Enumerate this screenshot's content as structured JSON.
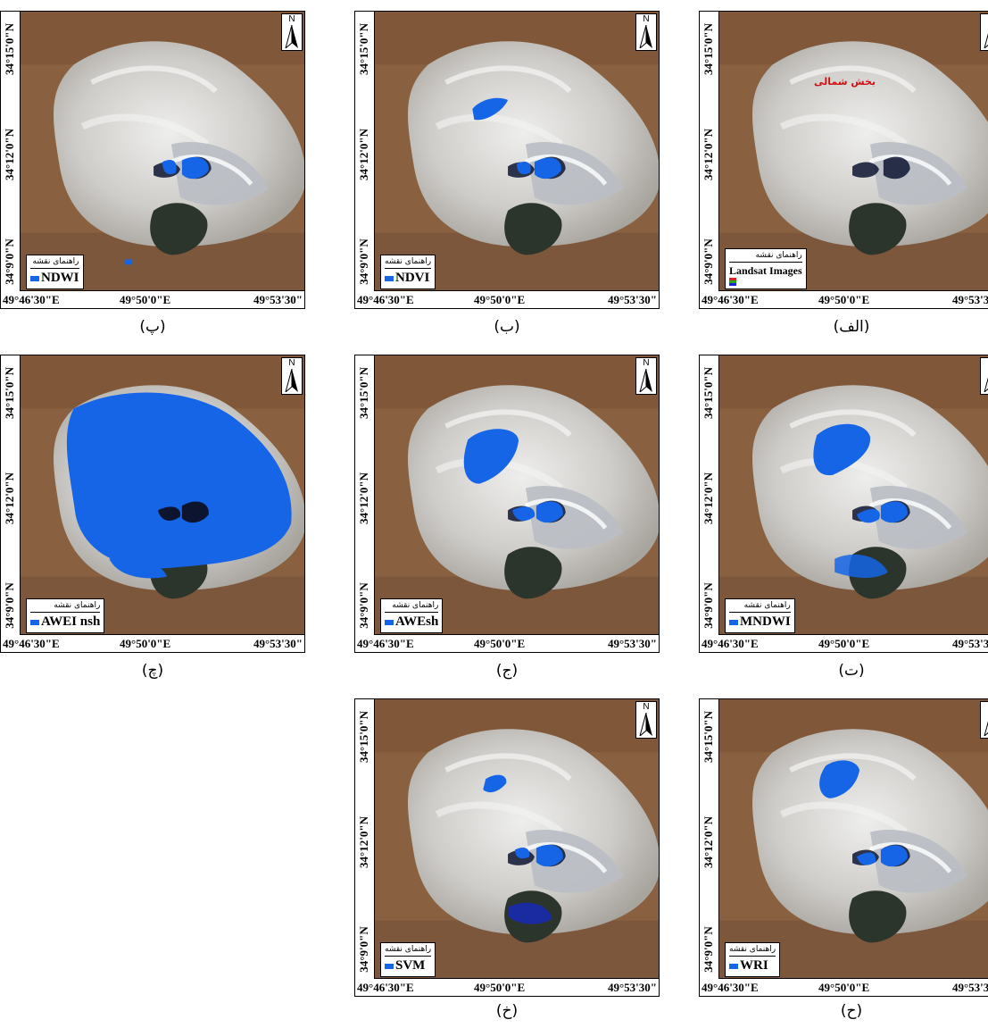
{
  "coords": {
    "lat_top": "34°15'0\"N",
    "lat_mid": "34°12'0\"N",
    "lat_bot": "34°9'0\"N",
    "lon_left": "49°46'30\"E",
    "lon_mid": "49°50'0\"E",
    "lon_right": "49°53'30\""
  },
  "north_label": "N",
  "legend_title": "راهنمای نقشه",
  "northern_part_label": "بخش شمالی",
  "panels": [
    {
      "caption": "(الف)",
      "legend_item": "Landsat Images"
    },
    {
      "caption": "(ب)",
      "legend_item": "NDVI"
    },
    {
      "caption": "(پ)",
      "legend_item": "NDWI"
    },
    {
      "caption": "(ت)",
      "legend_item": "MNDWI"
    },
    {
      "caption": "(ج)",
      "legend_item": "AWEsh"
    },
    {
      "caption": "(چ)",
      "legend_item": "AWEI nsh"
    },
    {
      "caption": "(ح)",
      "legend_item": "WRI"
    },
    {
      "caption": "(خ)",
      "legend_item": "SVM"
    }
  ],
  "colors": {
    "water": "#1565e6",
    "terrain": "#8a6140",
    "playa": "#d6d4d0"
  }
}
